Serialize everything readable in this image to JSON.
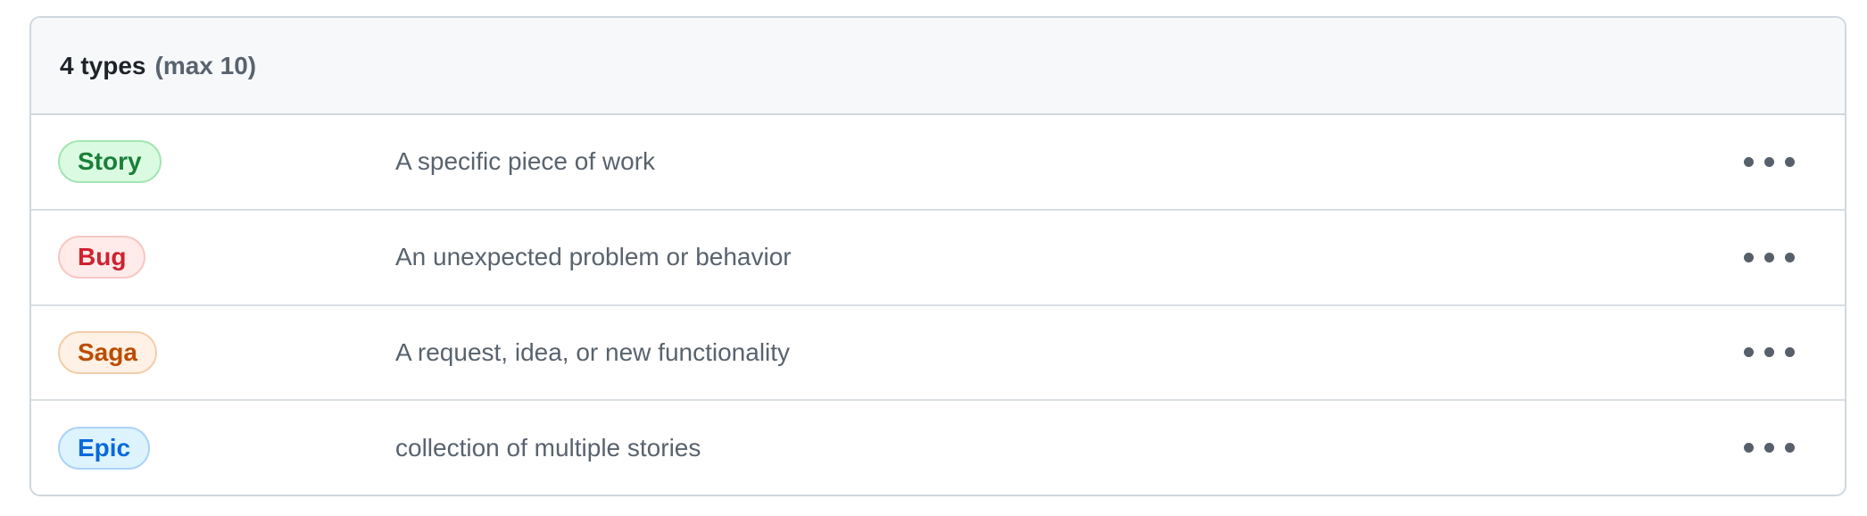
{
  "card": {
    "header": {
      "title": "4 types",
      "max_label": "(max 10)"
    },
    "types": [
      {
        "name": "Story",
        "description": "A specific piece of work",
        "colors": {
          "text": "#1a7f37",
          "bg": "#dafbe1",
          "border": "#a3e5b3"
        }
      },
      {
        "name": "Bug",
        "description": "An unexpected problem or behavior",
        "colors": {
          "text": "#cf222e",
          "bg": "#ffebe9",
          "border": "#f7c8c4"
        }
      },
      {
        "name": "Saga",
        "description": "A request, idea, or new functionality",
        "colors": {
          "text": "#bc4c00",
          "bg": "#fff1e5",
          "border": "#f3ceab"
        }
      },
      {
        "name": "Epic",
        "description": "collection of multiple stories",
        "colors": {
          "text": "#0969da",
          "bg": "#ddf4ff",
          "border": "#abd3f7"
        }
      }
    ],
    "row_menu_icon": "kebab-horizontal"
  }
}
